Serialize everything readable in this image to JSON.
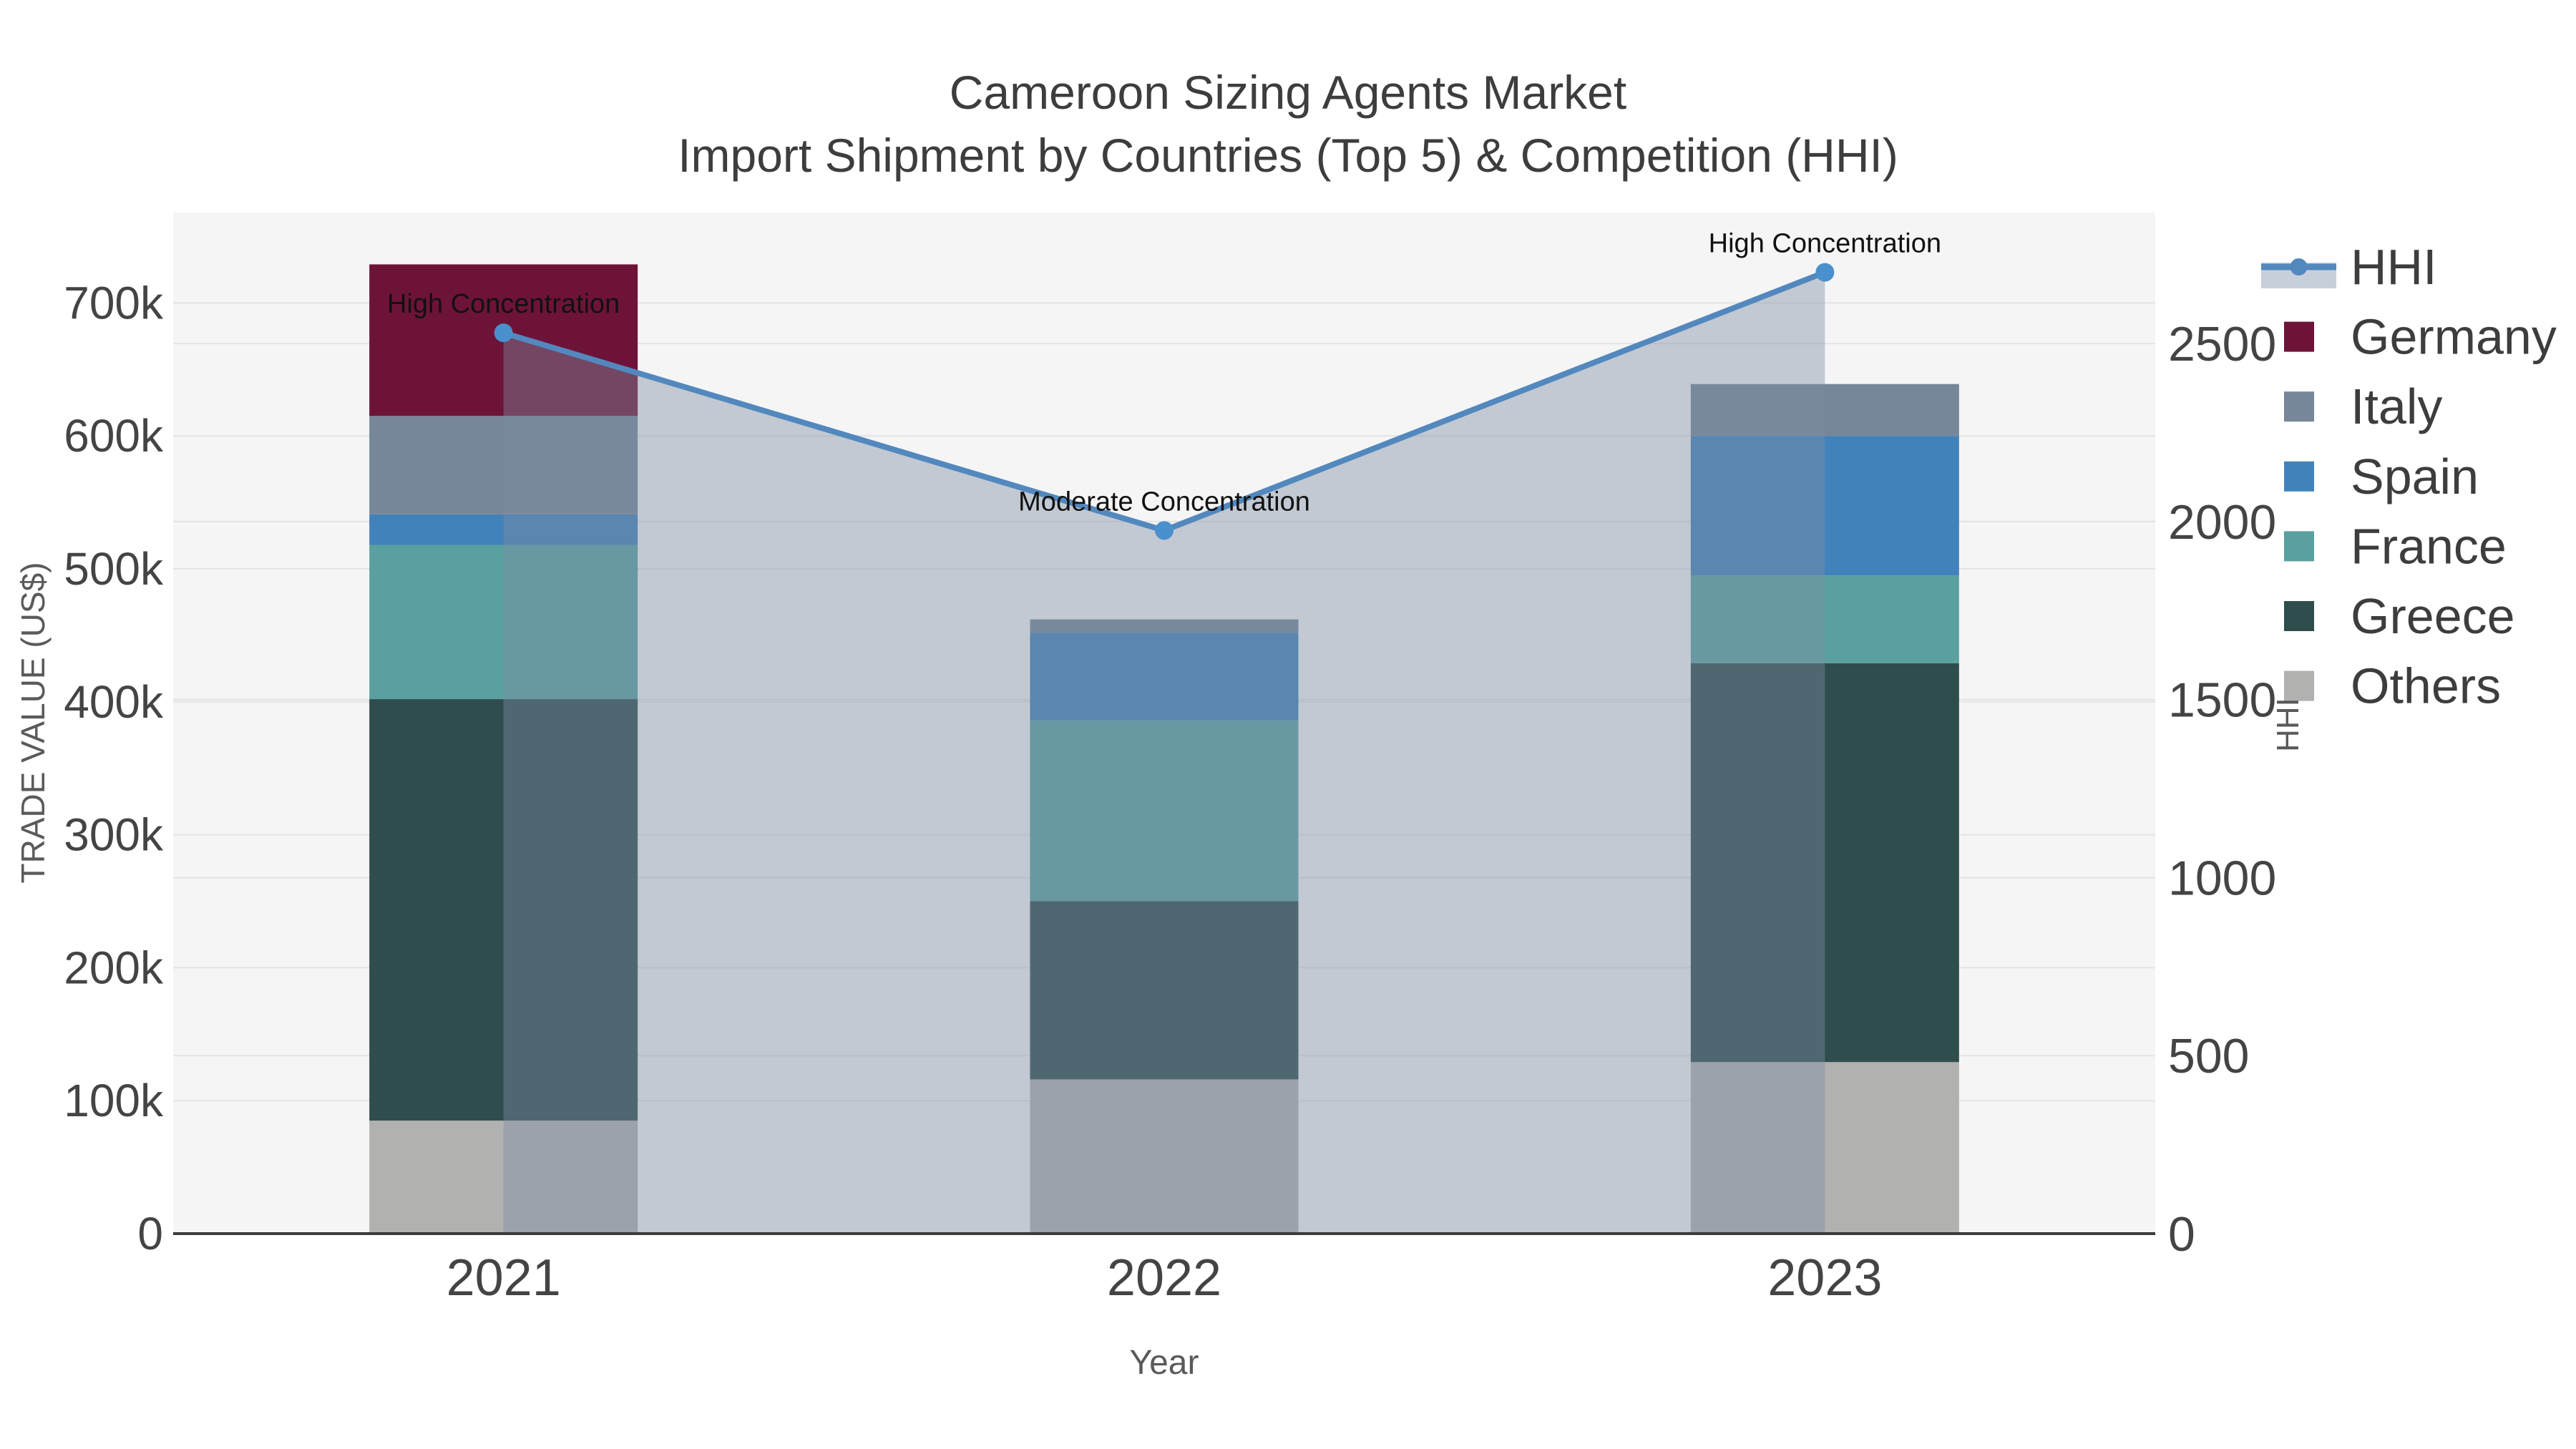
{
  "title": {
    "line1": "Cameroon Sizing Agents Market",
    "line2": "Import Shipment by Countries (Top 5) & Competition (HHI)"
  },
  "axes": {
    "x": {
      "title": "Year",
      "ticks": [
        "2021",
        "2022",
        "2023"
      ]
    },
    "y_left": {
      "title": "TRADE VALUE (US$)",
      "tick_labels": [
        "0",
        "100k",
        "200k",
        "300k",
        "400k",
        "500k",
        "600k",
        "700k"
      ],
      "tick_values": [
        0,
        100000,
        200000,
        300000,
        400000,
        500000,
        600000,
        700000
      ],
      "range": [
        0,
        768000
      ]
    },
    "y_right": {
      "title": "HHI",
      "tick_labels": [
        "0",
        "500",
        "1000",
        "1500",
        "2000",
        "2500"
      ],
      "tick_values": [
        0,
        500,
        1000,
        1500,
        2000,
        2500
      ],
      "range": [
        0,
        2868
      ]
    }
  },
  "legend": {
    "items": [
      {
        "label": "HHI",
        "type": "line",
        "color": "#5288BE"
      },
      {
        "label": "Germany",
        "type": "swatch",
        "color": "#6E1338"
      },
      {
        "label": "Italy",
        "type": "swatch",
        "color": "#778799"
      },
      {
        "label": "Spain",
        "type": "swatch",
        "color": "#4282BA"
      },
      {
        "label": "France",
        "type": "swatch",
        "color": "#5AA0A0"
      },
      {
        "label": "Greece",
        "type": "swatch",
        "color": "#2F4D4D"
      },
      {
        "label": "Others",
        "type": "swatch",
        "color": "#B1B1AF"
      }
    ]
  },
  "chart_data": {
    "type": "bar",
    "subtype": "stacked-bars-with-line-dual-axis",
    "categories": [
      "2021",
      "2022",
      "2023"
    ],
    "stack_order_bottom_to_top": [
      "Others",
      "Greece",
      "France",
      "Spain",
      "Italy",
      "Germany"
    ],
    "series": [
      {
        "name": "Germany",
        "axis": "y_left",
        "color": "#6E1338",
        "values": [
          114000,
          0,
          0
        ]
      },
      {
        "name": "Italy",
        "axis": "y_left",
        "color": "#778799",
        "values": [
          74000,
          10000,
          39000
        ]
      },
      {
        "name": "Spain",
        "axis": "y_left",
        "color": "#4282BA",
        "values": [
          23000,
          66000,
          105000
        ]
      },
      {
        "name": "France",
        "axis": "y_left",
        "color": "#5AA0A0",
        "values": [
          116000,
          136000,
          66000
        ]
      },
      {
        "name": "Greece",
        "axis": "y_left",
        "color": "#2F4D4D",
        "values": [
          317000,
          134000,
          300000
        ]
      },
      {
        "name": "Others",
        "axis": "y_left",
        "color": "#B1B1AF",
        "values": [
          85000,
          116000,
          129000
        ]
      }
    ],
    "line_series": {
      "name": "HHI",
      "axis": "y_right",
      "values": [
        2530,
        1975,
        2700
      ],
      "line_color": "#5288BE",
      "marker_color": "#4990CD",
      "area_fill": "rgba(125,141,163,0.42)"
    },
    "annotations": [
      {
        "category": "2021",
        "text": "High Concentration"
      },
      {
        "category": "2022",
        "text": "Moderate Concentration"
      },
      {
        "category": "2023",
        "text": "High Concentration"
      }
    ],
    "totals_y_left": [
      729000,
      462000,
      639000
    ],
    "xlabel": "Year",
    "ylabel_left": "TRADE VALUE (US$)",
    "ylabel_right": "HHI",
    "grid": true,
    "legend_position": "right"
  },
  "style": {
    "plot_bg": "#F5F5F5",
    "grid_color": "#E3E3E3",
    "axis_line_color": "#3B3B3B",
    "tick_text_color": "#444444",
    "title_color": "#3D3D3D",
    "axis_title_color": "#5A5A5A",
    "annotation_color": "#111111",
    "legend_text_color": "#3D3D3D",
    "legend_fill_band": "#C7CFDA"
  }
}
